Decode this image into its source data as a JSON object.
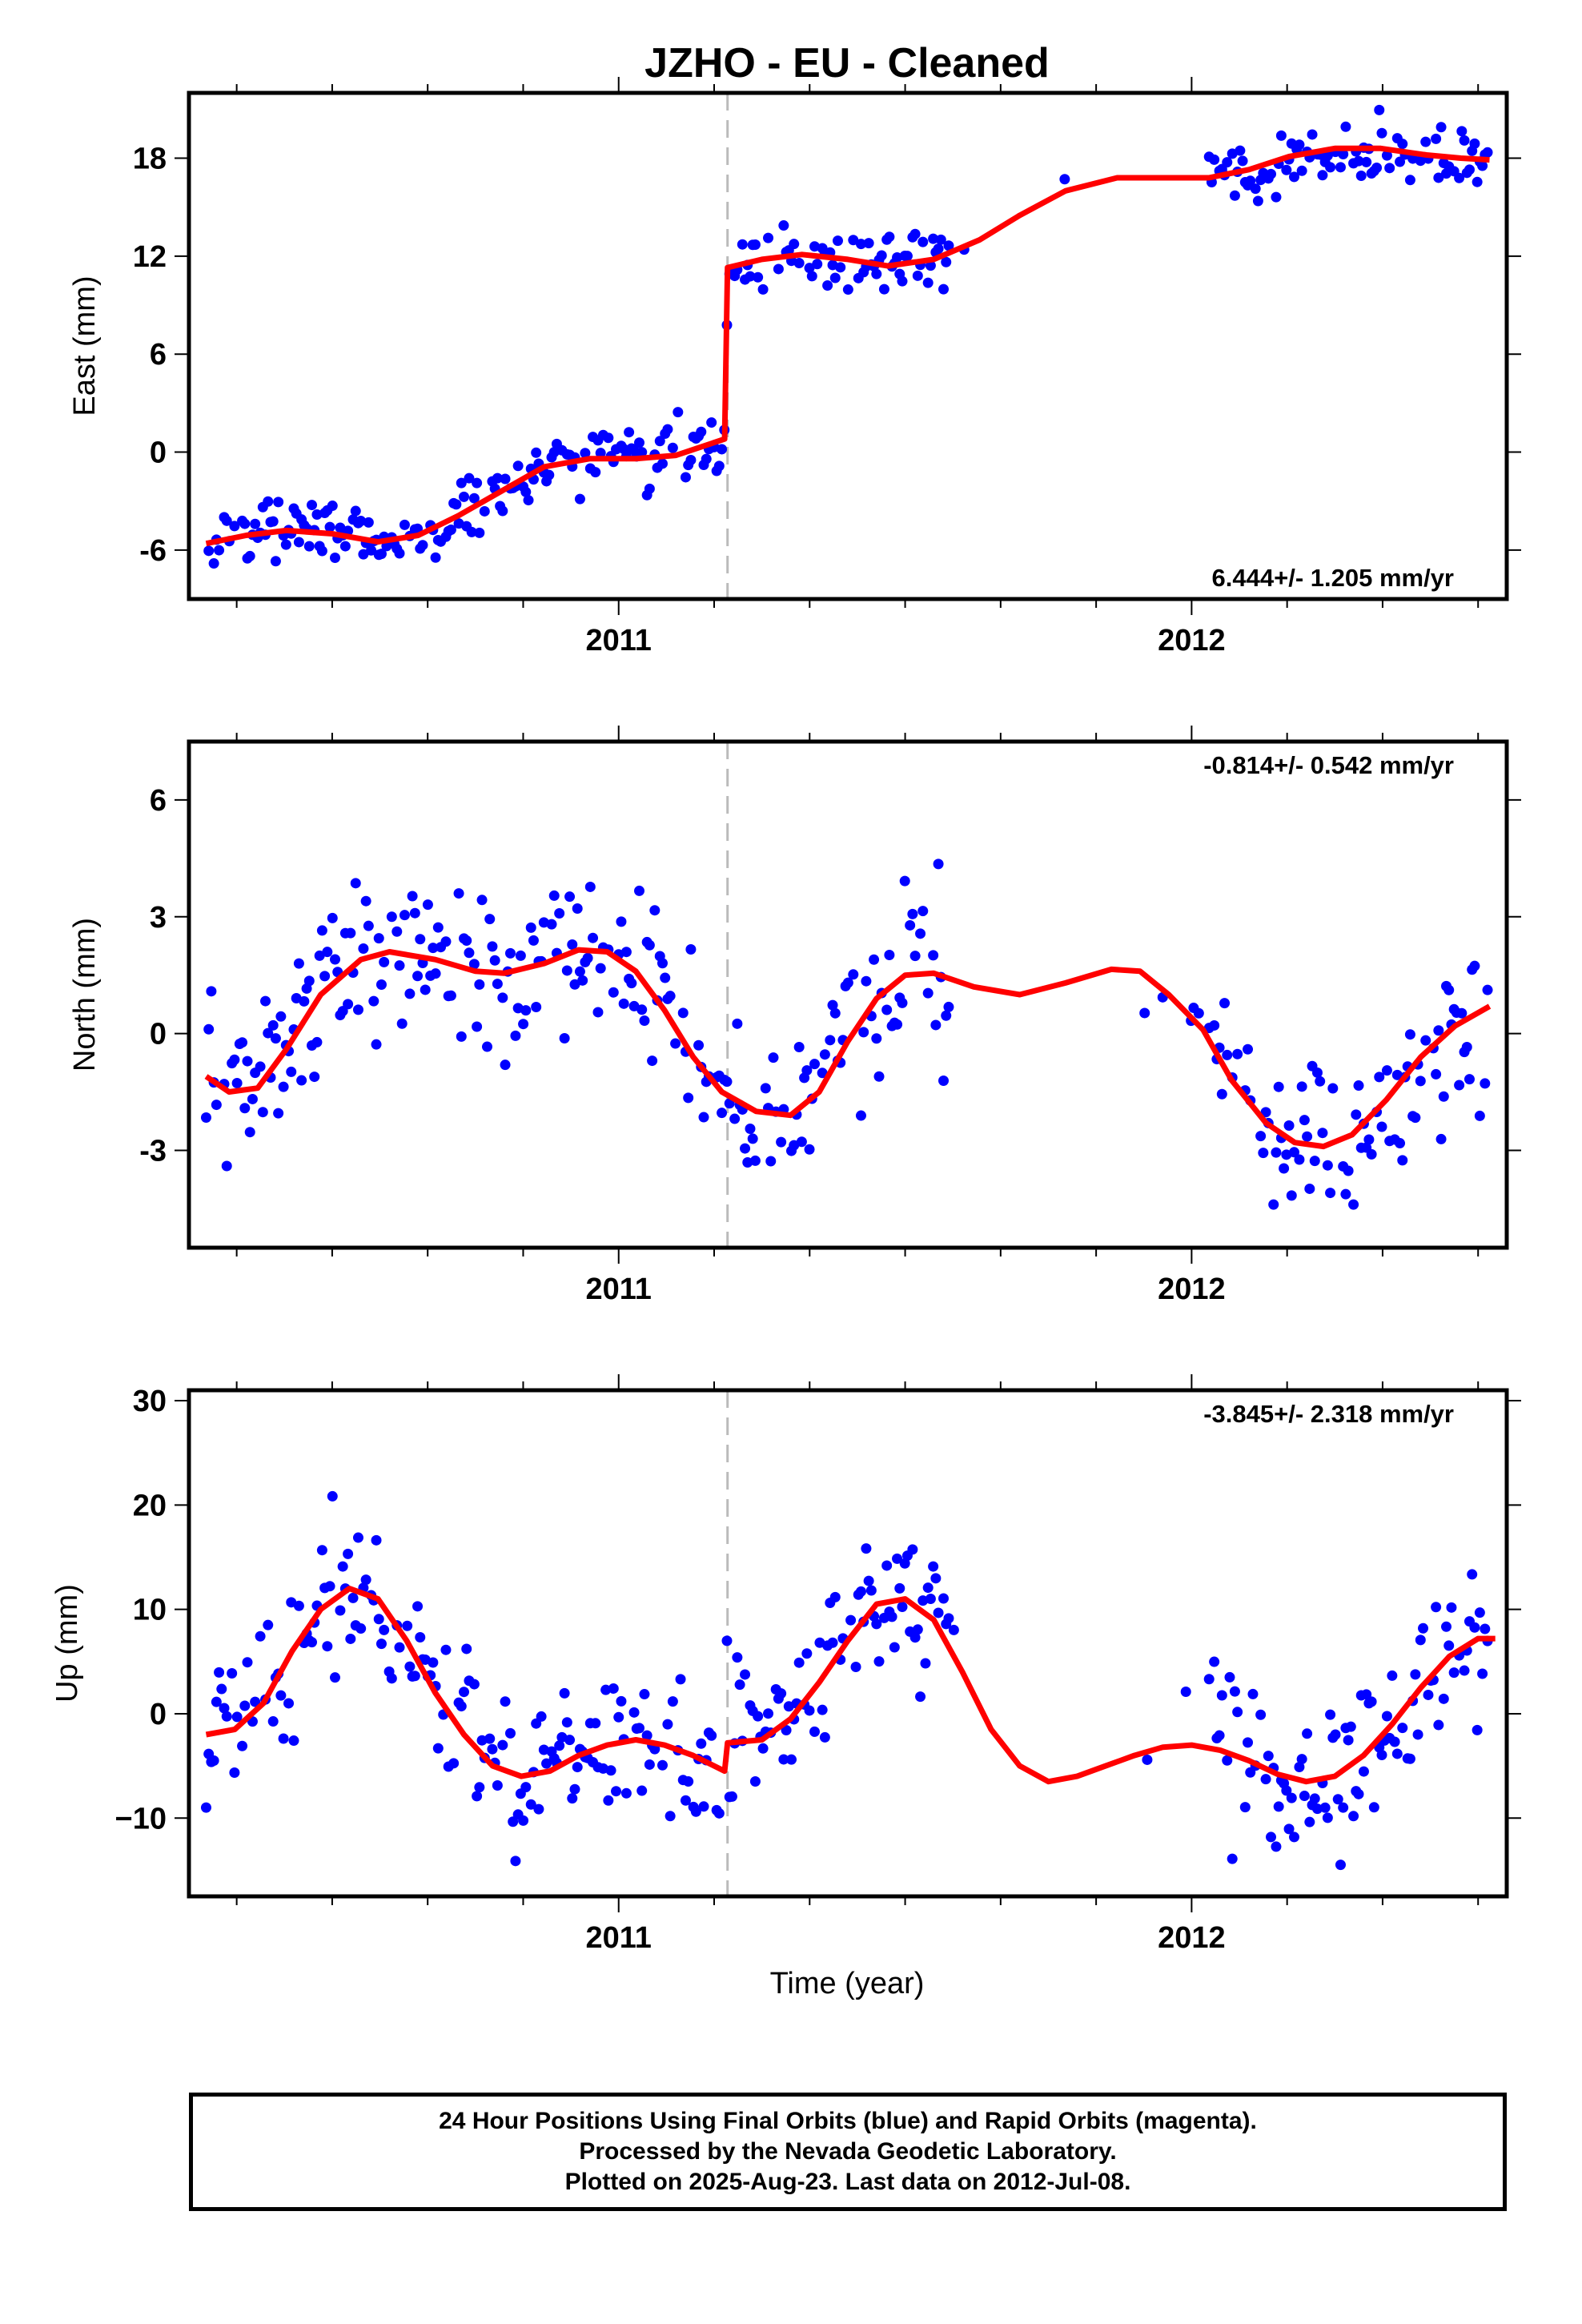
{
  "title": "JZHO  - EU - Cleaned",
  "xlabel": "Time (year)",
  "footer": {
    "line1": "24 Hour Positions Using Final Orbits (blue) and Rapid Orbits (magenta).",
    "line2": "Processed by the Nevada Geodetic Laboratory.",
    "line3": "Plotted on 2025-Aug-23. Last data on 2012-Jul-08."
  },
  "colors": {
    "points": "#0000ff",
    "model": "#ff0000",
    "step": "#bbbbbb"
  },
  "chart_data": [
    {
      "type": "scatter",
      "ylabel": "East (mm)",
      "rate": "6.444+/- 1.205 mm/yr",
      "xlim": [
        2010.25,
        2012.55
      ],
      "ylim": [
        -9,
        22
      ],
      "yticks": [
        -6,
        0,
        6,
        12,
        18
      ],
      "ytick_labels": [
        "-6",
        "0",
        "6",
        "12",
        "18"
      ],
      "xticks": [
        2011,
        2012
      ],
      "xtick_labels": [
        "2011",
        "2012"
      ],
      "step_epoch": 2011.19,
      "model": [
        [
          2010.28,
          -5.6
        ],
        [
          2010.35,
          -5.1
        ],
        [
          2010.42,
          -4.8
        ],
        [
          2010.5,
          -5.0
        ],
        [
          2010.58,
          -5.5
        ],
        [
          2010.65,
          -5.1
        ],
        [
          2010.72,
          -3.9
        ],
        [
          2010.8,
          -2.3
        ],
        [
          2010.87,
          -0.9
        ],
        [
          2010.95,
          -0.4
        ],
        [
          2011.03,
          -0.4
        ],
        [
          2011.1,
          -0.2
        ],
        [
          2011.185,
          0.8
        ],
        [
          2011.19,
          11.3
        ],
        [
          2011.25,
          11.8
        ],
        [
          2011.32,
          12.1
        ],
        [
          2011.4,
          11.8
        ],
        [
          2011.47,
          11.4
        ],
        [
          2011.55,
          11.8
        ],
        [
          2011.63,
          13.0
        ],
        [
          2011.7,
          14.5
        ],
        [
          2011.78,
          16.0
        ],
        [
          2011.87,
          16.8
        ],
        [
          2011.95,
          16.8
        ],
        [
          2012.03,
          16.8
        ],
        [
          2012.1,
          17.3
        ],
        [
          2012.17,
          18.1
        ],
        [
          2012.25,
          18.6
        ],
        [
          2012.33,
          18.6
        ],
        [
          2012.41,
          18.2
        ],
        [
          2012.47,
          18.0
        ],
        [
          2012.52,
          17.9
        ]
      ]
    },
    {
      "type": "scatter",
      "ylabel": "North (mm)",
      "rate": "-0.814+/- 0.542 mm/yr",
      "xlim": [
        2010.25,
        2012.55
      ],
      "ylim": [
        -5.5,
        7.5
      ],
      "yticks": [
        -3,
        0,
        3,
        6
      ],
      "ytick_labels": [
        "-3",
        "0",
        "3",
        "6"
      ],
      "xticks": [
        2011,
        2012
      ],
      "xtick_labels": [
        "2011",
        "2012"
      ],
      "step_epoch": 2011.19,
      "model": [
        [
          2010.28,
          -1.1
        ],
        [
          2010.32,
          -1.5
        ],
        [
          2010.37,
          -1.4
        ],
        [
          2010.42,
          -0.4
        ],
        [
          2010.48,
          1.0
        ],
        [
          2010.55,
          1.9
        ],
        [
          2010.6,
          2.1
        ],
        [
          2010.68,
          1.9
        ],
        [
          2010.75,
          1.6
        ],
        [
          2010.8,
          1.55
        ],
        [
          2010.87,
          1.8
        ],
        [
          2010.93,
          2.15
        ],
        [
          2010.98,
          2.1
        ],
        [
          2011.03,
          1.6
        ],
        [
          2011.08,
          0.6
        ],
        [
          2011.13,
          -0.6
        ],
        [
          2011.18,
          -1.5
        ],
        [
          2011.24,
          -2.0
        ],
        [
          2011.3,
          -2.1
        ],
        [
          2011.35,
          -1.5
        ],
        [
          2011.4,
          -0.2
        ],
        [
          2011.45,
          0.9
        ],
        [
          2011.5,
          1.5
        ],
        [
          2011.55,
          1.55
        ],
        [
          2011.62,
          1.2
        ],
        [
          2011.7,
          1.0
        ],
        [
          2011.78,
          1.3
        ],
        [
          2011.86,
          1.65
        ],
        [
          2011.91,
          1.6
        ],
        [
          2011.96,
          1.0
        ],
        [
          2012.02,
          0.1
        ],
        [
          2012.07,
          -1.2
        ],
        [
          2012.13,
          -2.3
        ],
        [
          2012.18,
          -2.8
        ],
        [
          2012.23,
          -2.9
        ],
        [
          2012.28,
          -2.6
        ],
        [
          2012.34,
          -1.7
        ],
        [
          2012.4,
          -0.6
        ],
        [
          2012.46,
          0.2
        ],
        [
          2012.52,
          0.7
        ]
      ]
    },
    {
      "type": "scatter",
      "ylabel": "Up (mm)",
      "rate": "-3.845+/- 2.318 mm/yr",
      "xlim": [
        2010.25,
        2012.55
      ],
      "ylim": [
        -17.5,
        31
      ],
      "yticks": [
        -10,
        0,
        10,
        20,
        30
      ],
      "ytick_labels": [
        "−10",
        "0",
        "10",
        "20",
        "30"
      ],
      "xticks": [
        2011,
        2012
      ],
      "xtick_labels": [
        "2011",
        "2012"
      ],
      "step_epoch": 2011.19,
      "model": [
        [
          2010.28,
          -2.0
        ],
        [
          2010.33,
          -1.5
        ],
        [
          2010.38,
          1.0
        ],
        [
          2010.43,
          6.0
        ],
        [
          2010.48,
          10.0
        ],
        [
          2010.53,
          12.0
        ],
        [
          2010.58,
          11.0
        ],
        [
          2010.63,
          7.0
        ],
        [
          2010.68,
          2.0
        ],
        [
          2010.73,
          -2.0
        ],
        [
          2010.78,
          -5.0
        ],
        [
          2010.83,
          -6.0
        ],
        [
          2010.88,
          -5.5
        ],
        [
          2010.93,
          -4.0
        ],
        [
          2010.98,
          -3.0
        ],
        [
          2011.03,
          -2.5
        ],
        [
          2011.08,
          -3.0
        ],
        [
          2011.13,
          -4.0
        ],
        [
          2011.185,
          -5.5
        ],
        [
          2011.19,
          -2.8
        ],
        [
          2011.25,
          -2.5
        ],
        [
          2011.3,
          -0.5
        ],
        [
          2011.35,
          3.0
        ],
        [
          2011.4,
          7.0
        ],
        [
          2011.45,
          10.5
        ],
        [
          2011.5,
          11.0
        ],
        [
          2011.55,
          9.0
        ],
        [
          2011.6,
          4.0
        ],
        [
          2011.65,
          -1.5
        ],
        [
          2011.7,
          -5.0
        ],
        [
          2011.75,
          -6.5
        ],
        [
          2011.8,
          -6.0
        ],
        [
          2011.85,
          -5.0
        ],
        [
          2011.9,
          -4.0
        ],
        [
          2011.95,
          -3.2
        ],
        [
          2012.0,
          -3.0
        ],
        [
          2012.05,
          -3.5
        ],
        [
          2012.1,
          -4.5
        ],
        [
          2012.15,
          -5.8
        ],
        [
          2012.2,
          -6.5
        ],
        [
          2012.25,
          -6.0
        ],
        [
          2012.3,
          -4.0
        ],
        [
          2012.35,
          -1.0
        ],
        [
          2012.4,
          2.5
        ],
        [
          2012.45,
          5.5
        ],
        [
          2012.5,
          7.2
        ],
        [
          2012.53,
          7.2
        ]
      ]
    }
  ]
}
